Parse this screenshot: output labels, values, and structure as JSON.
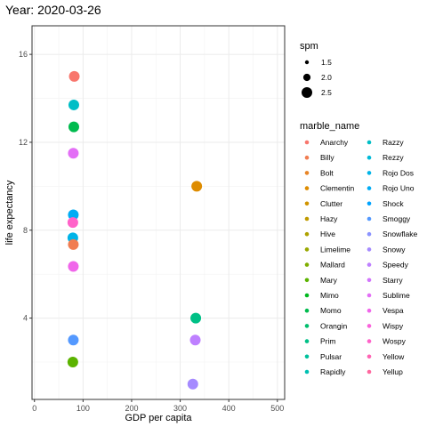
{
  "chart_data": {
    "type": "scatter",
    "title": "Year: 2020-03-26",
    "xlabel": "GDP per capita",
    "ylabel": "life expectancy",
    "xlim": [
      -5,
      515
    ],
    "ylim": [
      0.3,
      17.3
    ],
    "xticks": [
      0,
      100,
      200,
      300,
      400,
      500
    ],
    "yticks": [
      4,
      8,
      12,
      16
    ],
    "grid": true,
    "size_legend": {
      "title": "spm",
      "items": [
        {
          "label": "1.5",
          "value": 1.5
        },
        {
          "label": "2.0",
          "value": 2.0
        },
        {
          "label": "2.5",
          "value": 2.5
        }
      ]
    },
    "color_legend": {
      "title": "marble_name",
      "items": [
        {
          "label": "Anarchy",
          "color": "#F8766D"
        },
        {
          "label": "Billy",
          "color": "#F17D51"
        },
        {
          "label": "Bolt",
          "color": "#E88526"
        },
        {
          "label": "Clementin",
          "color": "#DE8C00"
        },
        {
          "label": "Clutter",
          "color": "#D09400"
        },
        {
          "label": "Hazy",
          "color": "#C09B00"
        },
        {
          "label": "Hive",
          "color": "#AEA200"
        },
        {
          "label": "Limelime",
          "color": "#99A800"
        },
        {
          "label": "Mallard",
          "color": "#7FAE00"
        },
        {
          "label": "Mary",
          "color": "#5BB300"
        },
        {
          "label": "Mimo",
          "color": "#00B81F"
        },
        {
          "label": "Momo",
          "color": "#00BB4E"
        },
        {
          "label": "Orangin",
          "color": "#00BE6C"
        },
        {
          "label": "Prim",
          "color": "#00C086"
        },
        {
          "label": "Pulsar",
          "color": "#00C19C"
        },
        {
          "label": "Rapidly",
          "color": "#00C0B2"
        },
        {
          "label": "Razzy",
          "color": "#00BEC6"
        },
        {
          "label": "Rezzy",
          "color": "#00BAD8"
        },
        {
          "label": "Rojo Dos",
          "color": "#00B4E8"
        },
        {
          "label": "Rojo Uno",
          "color": "#00ACF5"
        },
        {
          "label": "Shock",
          "color": "#00A3FF"
        },
        {
          "label": "Smoggy",
          "color": "#5499FF"
        },
        {
          "label": "Snowflake",
          "color": "#8B93FF"
        },
        {
          "label": "Snowy",
          "color": "#A58AFF"
        },
        {
          "label": "Speedy",
          "color": "#BE80FF"
        },
        {
          "label": "Starry",
          "color": "#D275FC"
        },
        {
          "label": "Sublime",
          "color": "#E36EF6"
        },
        {
          "label": "Vespa",
          "color": "#F066EA"
        },
        {
          "label": "Wispy",
          "color": "#FA62DB"
        },
        {
          "label": "Wospy",
          "color": "#FF62C9"
        },
        {
          "label": "Yellow",
          "color": "#FF64B4"
        },
        {
          "label": "Yellup",
          "color": "#FF689F"
        }
      ]
    },
    "points": [
      {
        "x": 82,
        "y": 15.0,
        "spm": 2.5,
        "color": "#F8766D"
      },
      {
        "x": 81,
        "y": 13.7,
        "spm": 2.5,
        "color": "#00BEC6"
      },
      {
        "x": 81,
        "y": 12.7,
        "spm": 2.5,
        "color": "#00BB4E"
      },
      {
        "x": 80,
        "y": 11.5,
        "spm": 2.5,
        "color": "#E36EF6"
      },
      {
        "x": 334,
        "y": 10.0,
        "spm": 2.5,
        "color": "#DE8C00"
      },
      {
        "x": 80,
        "y": 8.7,
        "spm": 2.5,
        "color": "#00ACF5"
      },
      {
        "x": 79,
        "y": 8.35,
        "spm": 2.5,
        "color": "#FF62C9"
      },
      {
        "x": 79,
        "y": 7.65,
        "spm": 2.5,
        "color": "#00B4E8"
      },
      {
        "x": 80,
        "y": 7.35,
        "spm": 2.5,
        "color": "#F17D51"
      },
      {
        "x": 80,
        "y": 6.35,
        "spm": 2.5,
        "color": "#F066EA"
      },
      {
        "x": 332,
        "y": 4.0,
        "spm": 2.5,
        "color": "#00C086"
      },
      {
        "x": 80,
        "y": 3.0,
        "spm": 2.5,
        "color": "#5499FF"
      },
      {
        "x": 331,
        "y": 3.0,
        "spm": 2.5,
        "color": "#BE80FF"
      },
      {
        "x": 79,
        "y": 2.0,
        "spm": 2.5,
        "color": "#5BB300"
      },
      {
        "x": 326,
        "y": 1.0,
        "spm": 2.5,
        "color": "#A58AFF"
      }
    ]
  }
}
